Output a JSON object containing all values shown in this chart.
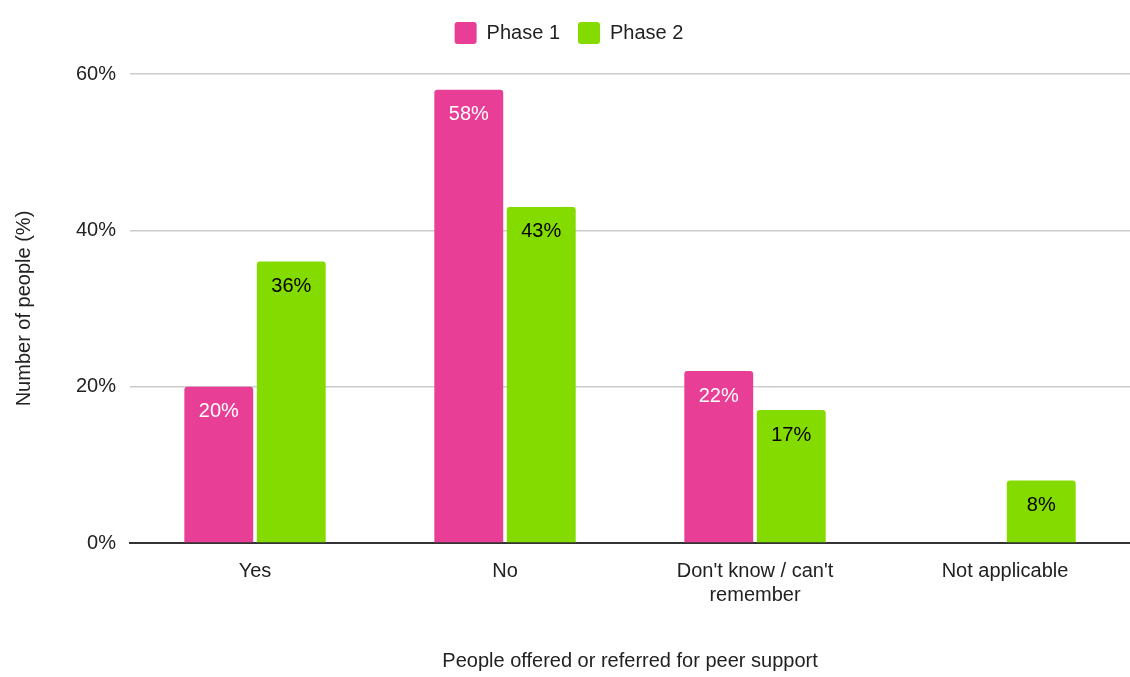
{
  "chart_data": {
    "type": "bar",
    "categories": [
      "Yes",
      "No",
      "Don't know / can't remember",
      "Not applicable"
    ],
    "series": [
      {
        "name": "Phase 1",
        "color": "#e83e95",
        "values": [
          20,
          58,
          22,
          null
        ],
        "value_labels": [
          "20%",
          "58%",
          "22%",
          null
        ]
      },
      {
        "name": "Phase 2",
        "color": "#84db00",
        "values": [
          36,
          43,
          17,
          8
        ],
        "value_labels": [
          "36%",
          "43%",
          "17%",
          "8%"
        ]
      }
    ],
    "xlabel": "People offered or referred for peer support",
    "ylabel": "Number of people (%)",
    "ylim": [
      0,
      60
    ],
    "yticks": [
      {
        "value": 0,
        "label": "0%"
      },
      {
        "value": 20,
        "label": "20%"
      },
      {
        "value": 40,
        "label": "40%"
      },
      {
        "value": 60,
        "label": "60%"
      }
    ],
    "grid": "y",
    "legend": "top"
  }
}
